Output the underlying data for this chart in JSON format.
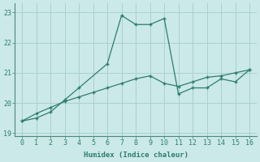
{
  "xlabel": "Humidex (Indice chaleur)",
  "line1_x": [
    0,
    1,
    2,
    3,
    4,
    6,
    7,
    8,
    9,
    10,
    11,
    12,
    13,
    14,
    15,
    16
  ],
  "line1_y": [
    19.4,
    19.5,
    19.7,
    20.1,
    20.5,
    21.3,
    22.9,
    22.6,
    22.6,
    22.8,
    20.3,
    20.5,
    20.5,
    20.8,
    20.7,
    21.1
  ],
  "line2_x": [
    0,
    1,
    2,
    3,
    4,
    5,
    6,
    7,
    8,
    9,
    10,
    11,
    12,
    13,
    14,
    15,
    16
  ],
  "line2_y": [
    19.4,
    19.65,
    19.85,
    20.05,
    20.2,
    20.35,
    20.5,
    20.65,
    20.8,
    20.9,
    20.65,
    20.55,
    20.7,
    20.85,
    20.9,
    21.0,
    21.1
  ],
  "line_color": "#2E7D6E",
  "bg_color": "#CBE9E9",
  "grid_color": "#AACFCF",
  "tick_color": "#2E7D6E",
  "label_color": "#2E7D6E",
  "xlim": [
    -0.5,
    16.5
  ],
  "ylim": [
    18.9,
    23.3
  ],
  "yticks": [
    19,
    20,
    21,
    22,
    23
  ],
  "xticks": [
    0,
    1,
    2,
    3,
    4,
    5,
    6,
    7,
    8,
    9,
    10,
    11,
    12,
    13,
    14,
    15,
    16
  ]
}
